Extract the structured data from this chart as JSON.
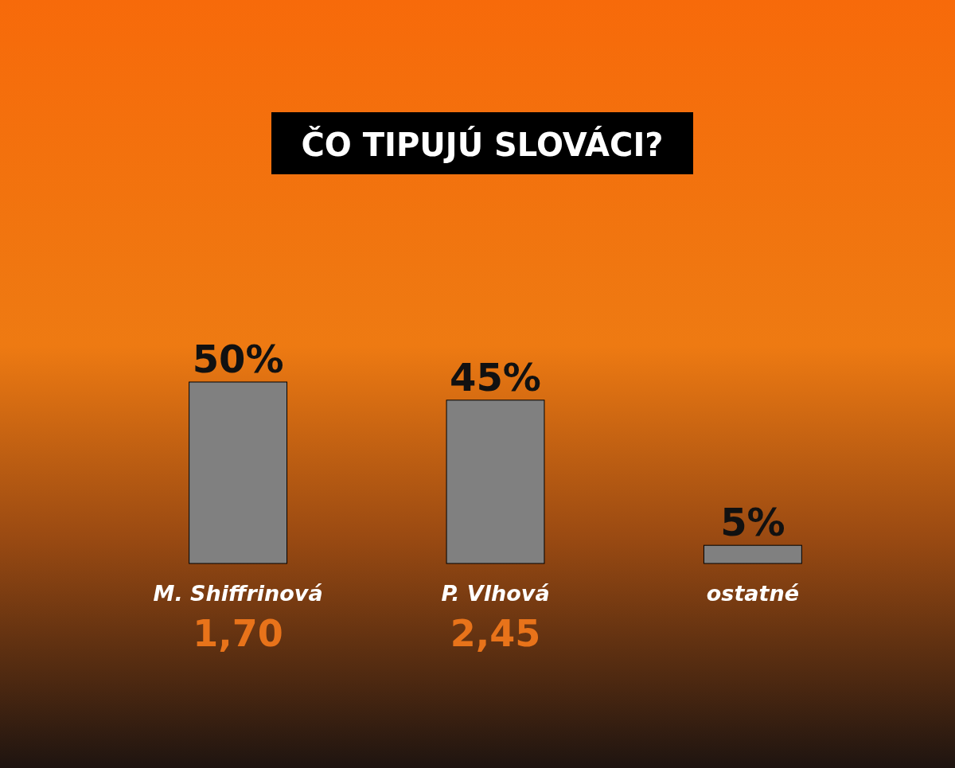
{
  "chart_data": {
    "type": "bar",
    "title": "ČO TIPUJÚ SLOVÁCI?",
    "categories": [
      "M. Shiffrinová",
      "P. Vlhová",
      "ostatné"
    ],
    "values": [
      50,
      45,
      5
    ],
    "value_labels": [
      "50%",
      "45%",
      "5%"
    ],
    "color": "#808080",
    "annotations": [
      "1,70",
      "2,45"
    ]
  }
}
